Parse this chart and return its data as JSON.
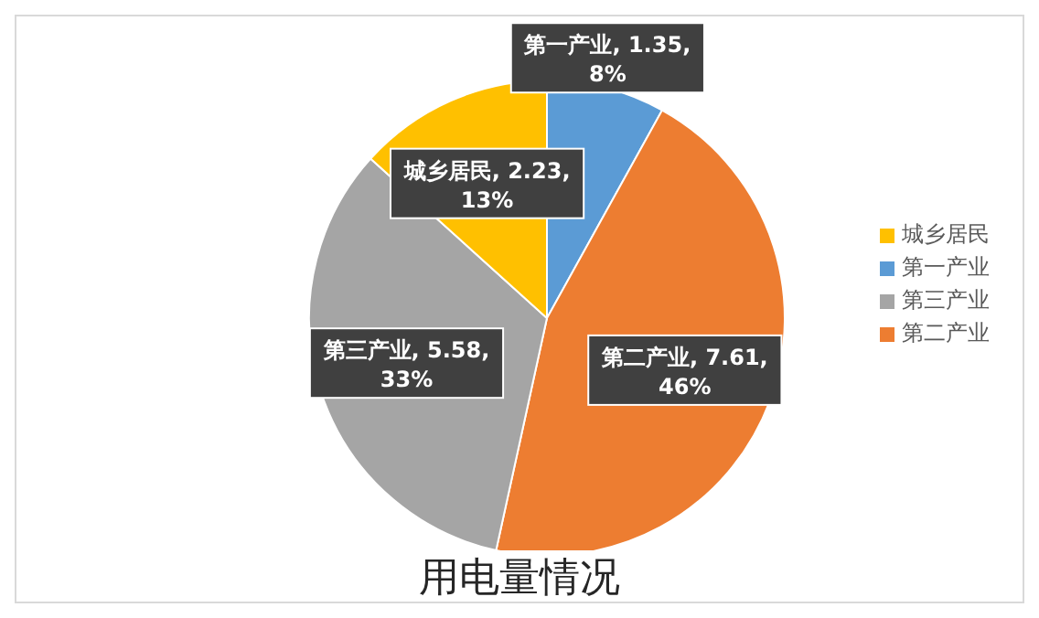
{
  "chart_data": {
    "type": "pie",
    "title": "用电量情况",
    "categories": [
      "第一产业",
      "第二产业",
      "第三产业",
      "城乡居民"
    ],
    "values": [
      1.35,
      7.61,
      5.58,
      2.23
    ],
    "colors": [
      "#5b9bd5",
      "#ed7d31",
      "#a5a5a5",
      "#ffc000"
    ],
    "value_labels": [
      "第一产业, 1.35, 8%",
      "第二产业, 7.61, 46%",
      "第三产业, 5.58, 33%",
      "城乡居民, 2.23, 13%"
    ],
    "legend": "right"
  }
}
